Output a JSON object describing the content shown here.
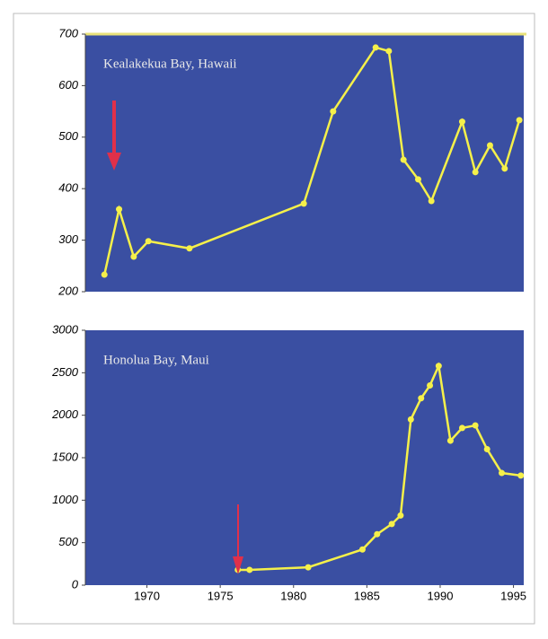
{
  "chart_data": [
    {
      "type": "line",
      "title": "Kealakekua Bay, Hawaii",
      "x": [
        1967.1,
        1968.1,
        1969.1,
        1970.1,
        1972.9,
        1980.7,
        1982.7,
        1985.6,
        1986.5,
        1987.5,
        1988.5,
        1989.4,
        1991.5,
        1992.4,
        1993.4,
        1994.4,
        1995.4
      ],
      "series": [
        {
          "color": "#f5f04a",
          "values": [
            233,
            360,
            268,
            298,
            284,
            371,
            550,
            674,
            667,
            456,
            418,
            376,
            530,
            432,
            484,
            439,
            533
          ]
        }
      ],
      "xlim": [
        1965.8,
        1995.7
      ],
      "ylim": [
        200,
        700
      ],
      "yticks": [
        200,
        300,
        400,
        500,
        600,
        700
      ]
    },
    {
      "type": "line",
      "title": "Honolua Bay, Maui",
      "x": [
        1976.2,
        1977,
        1981,
        1984.7,
        1985.7,
        1986.7,
        1987.3,
        1988,
        1988.7,
        1989.3,
        1989.9,
        1990.7,
        1991.5,
        1992.4,
        1993.2,
        1994.2,
        1995.5
      ],
      "series": [
        {
          "color": "#f5f04a",
          "values": [
            180,
            180,
            210,
            420,
            600,
            720,
            820,
            1950,
            2200,
            2350,
            2580,
            1700,
            1850,
            1880,
            1600,
            1320,
            1290
          ]
        }
      ],
      "xlim": [
        1965.8,
        1995.7
      ],
      "ylim": [
        0,
        3000
      ],
      "yticks": [
        0,
        500,
        1000,
        1500,
        2000,
        2500,
        3000
      ],
      "xticks": [
        1970,
        1975,
        1980,
        1985,
        1990,
        1995
      ]
    }
  ]
}
